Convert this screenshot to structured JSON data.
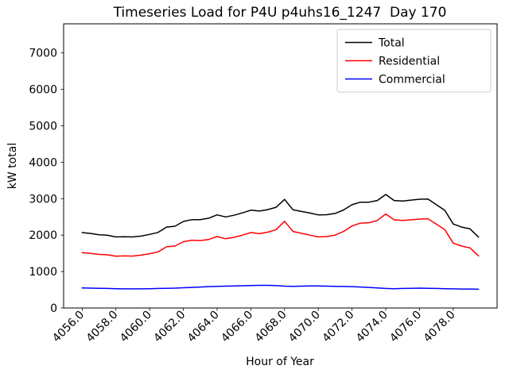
{
  "chart_data": {
    "type": "line",
    "title": "Timeseries Load for P4U p4uhs16_1247  Day 170",
    "xlabel": "Hour of Year",
    "ylabel": "kW total",
    "xlim": [
      4054.9,
      4080.6
    ],
    "ylim": [
      0,
      7800
    ],
    "grid": false,
    "legend_position": "upper right",
    "xticks": [
      4056,
      4058,
      4060,
      4062,
      4064,
      4066,
      4068,
      4070,
      4072,
      4074,
      4076,
      4078
    ],
    "xtick_labels": [
      "4056.0",
      "4058.0",
      "4060.0",
      "4062.0",
      "4064.0",
      "4066.0",
      "4068.0",
      "4070.0",
      "4072.0",
      "4074.0",
      "4076.0",
      "4078.0"
    ],
    "yticks": [
      0,
      1000,
      2000,
      3000,
      4000,
      5000,
      6000,
      7000
    ],
    "ytick_labels": [
      "0",
      "1000",
      "2000",
      "3000",
      "4000",
      "5000",
      "6000",
      "7000"
    ],
    "x": [
      4056.0,
      4056.5,
      4057.0,
      4057.5,
      4058.0,
      4058.5,
      4059.0,
      4059.5,
      4060.0,
      4060.5,
      4061.0,
      4061.5,
      4062.0,
      4062.5,
      4063.0,
      4063.5,
      4064.0,
      4064.5,
      4065.0,
      4065.5,
      4066.0,
      4066.5,
      4067.0,
      4067.5,
      4068.0,
      4068.5,
      4069.0,
      4069.5,
      4070.0,
      4070.5,
      4071.0,
      4071.5,
      4072.0,
      4072.5,
      4073.0,
      4073.5,
      4074.0,
      4074.5,
      4075.0,
      4075.5,
      4076.0,
      4076.5,
      4077.0,
      4077.5,
      4078.0,
      4078.5,
      4079.0,
      4079.5
    ],
    "series": [
      {
        "name": "Total",
        "color": "#000000",
        "values": [
          2070,
          2045,
          2010,
          1995,
          1950,
          1955,
          1950,
          1975,
          2020,
          2075,
          2220,
          2245,
          2375,
          2425,
          2425,
          2465,
          2555,
          2500,
          2545,
          2610,
          2685,
          2660,
          2700,
          2765,
          2980,
          2695,
          2650,
          2605,
          2555,
          2560,
          2595,
          2690,
          2835,
          2905,
          2905,
          2950,
          3115,
          2950,
          2935,
          2960,
          2985,
          2990,
          2835,
          2680,
          2305,
          2220,
          2170,
          1945
        ]
      },
      {
        "name": "Residential",
        "color": "#ff0000",
        "values": [
          1520,
          1500,
          1470,
          1460,
          1420,
          1430,
          1425,
          1450,
          1490,
          1540,
          1680,
          1700,
          1820,
          1860,
          1850,
          1880,
          1960,
          1900,
          1940,
          2000,
          2070,
          2040,
          2080,
          2150,
          2380,
          2100,
          2050,
          2000,
          1950,
          1960,
          2000,
          2100,
          2250,
          2330,
          2340,
          2400,
          2580,
          2420,
          2400,
          2420,
          2440,
          2450,
          2300,
          2150,
          1780,
          1700,
          1650,
          1430
        ]
      },
      {
        "name": "Commercial",
        "color": "#0000ff",
        "values": [
          550,
          545,
          540,
          535,
          530,
          525,
          525,
          525,
          530,
          535,
          540,
          545,
          555,
          565,
          575,
          585,
          595,
          600,
          605,
          610,
          615,
          620,
          620,
          615,
          600,
          595,
          600,
          605,
          605,
          600,
          595,
          590,
          585,
          575,
          565,
          550,
          535,
          530,
          535,
          540,
          545,
          540,
          535,
          530,
          525,
          520,
          520,
          515
        ]
      }
    ]
  }
}
